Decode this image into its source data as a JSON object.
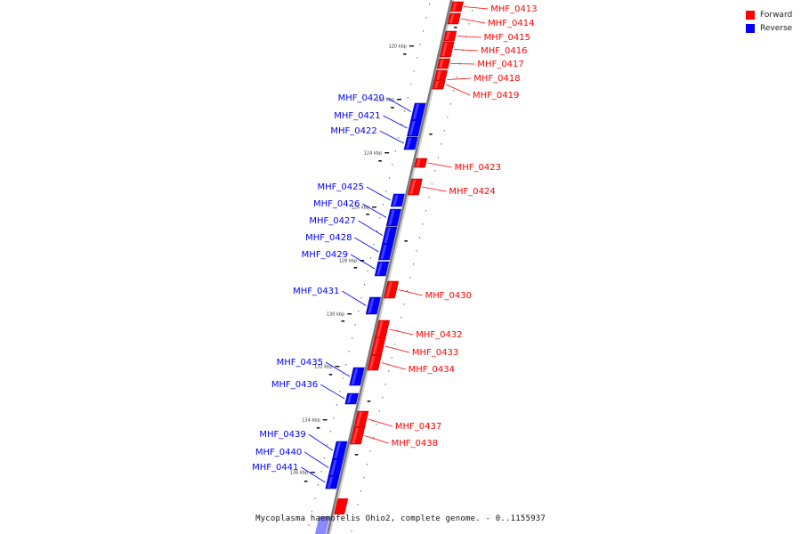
{
  "legend": {
    "forward_label": "Forward",
    "reverse_label": "Reverse",
    "forward_color": "#ff0000",
    "reverse_color": "#0000ff"
  },
  "caption": "Mycoplasma haemofelis Ohio2, complete genome. - 0..1155937",
  "ticks": [
    "120 kbp",
    "122 kbp",
    "124 kbp",
    "126 kbp",
    "128 kbp",
    "130 kbp",
    "132 kbp",
    "134 kbp",
    "136 kbp"
  ],
  "genes": [
    {
      "name": "MHF_0413",
      "strand": "forward"
    },
    {
      "name": "MHF_0414",
      "strand": "forward"
    },
    {
      "name": "MHF_0415",
      "strand": "forward"
    },
    {
      "name": "MHF_0416",
      "strand": "forward"
    },
    {
      "name": "MHF_0417",
      "strand": "forward"
    },
    {
      "name": "MHF_0418",
      "strand": "forward"
    },
    {
      "name": "MHF_0419",
      "strand": "forward"
    },
    {
      "name": "MHF_0420",
      "strand": "reverse"
    },
    {
      "name": "MHF_0421",
      "strand": "reverse"
    },
    {
      "name": "MHF_0422",
      "strand": "reverse"
    },
    {
      "name": "MHF_0423",
      "strand": "forward"
    },
    {
      "name": "MHF_0424",
      "strand": "forward"
    },
    {
      "name": "MHF_0425",
      "strand": "reverse"
    },
    {
      "name": "MHF_0426",
      "strand": "reverse"
    },
    {
      "name": "MHF_0427",
      "strand": "reverse"
    },
    {
      "name": "MHF_0428",
      "strand": "reverse"
    },
    {
      "name": "MHF_0429",
      "strand": "reverse"
    },
    {
      "name": "MHF_0430",
      "strand": "forward"
    },
    {
      "name": "MHF_0431",
      "strand": "reverse"
    },
    {
      "name": "MHF_0432",
      "strand": "forward"
    },
    {
      "name": "MHF_0433",
      "strand": "forward"
    },
    {
      "name": "MHF_0434",
      "strand": "forward"
    },
    {
      "name": "MHF_0435",
      "strand": "reverse"
    },
    {
      "name": "MHF_0436",
      "strand": "reverse"
    },
    {
      "name": "MHF_0437",
      "strand": "forward"
    },
    {
      "name": "MHF_0438",
      "strand": "forward"
    },
    {
      "name": "MHF_0439",
      "strand": "reverse"
    },
    {
      "name": "MHF_0440",
      "strand": "reverse"
    },
    {
      "name": "MHF_0441",
      "strand": "reverse"
    }
  ]
}
